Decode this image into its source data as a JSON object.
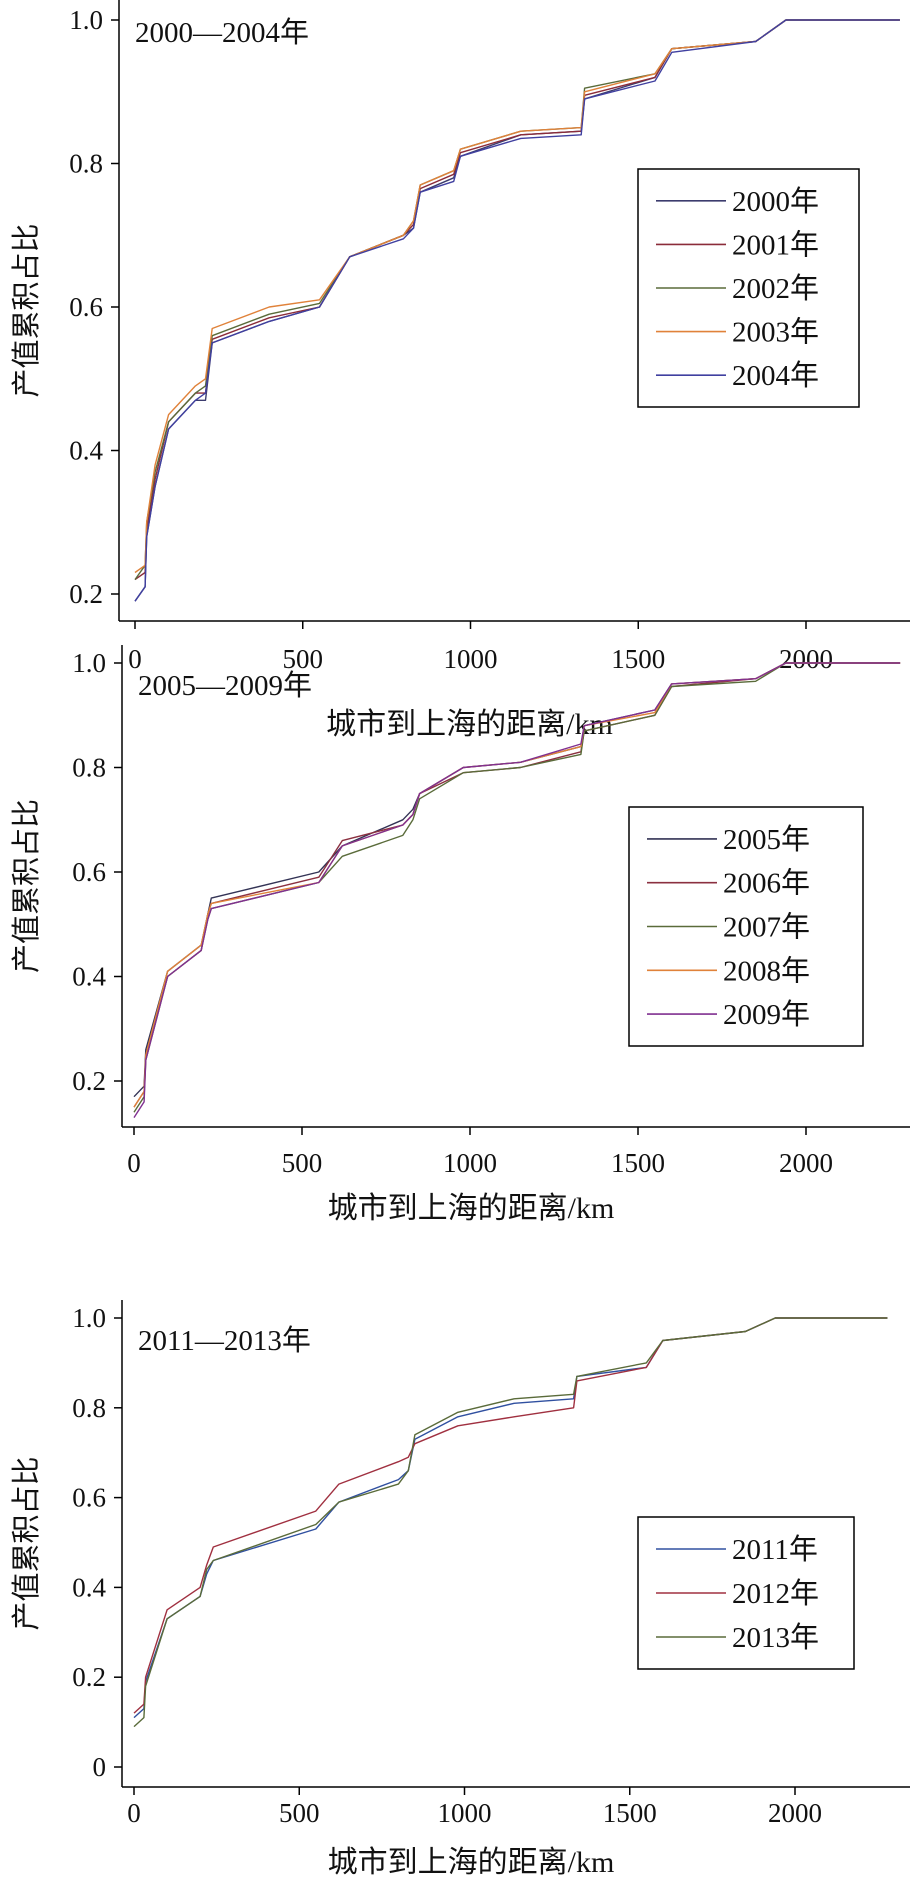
{
  "chart_data": [
    {
      "type": "line",
      "title": "2000—2004年",
      "xlabel": "城市到上海的距离/km",
      "ylabel": "产值累积占比",
      "xlim": [
        -20,
        2290
      ],
      "ylim": [
        0.17,
        1.02
      ],
      "xticks": [
        0,
        500,
        1000,
        1500,
        2000
      ],
      "xtick_labels": [
        "0",
        "500",
        "1000",
        "1500",
        "2000"
      ],
      "yticks": [
        0.2,
        0.4,
        0.6,
        0.8,
        1.0
      ],
      "ytick_labels": [
        "0.2",
        "0.4",
        "0.6",
        "0.8",
        "1.0"
      ],
      "legend_position": "right-middle",
      "x": [
        0,
        30,
        35,
        60,
        100,
        180,
        210,
        230,
        400,
        550,
        640,
        800,
        830,
        850,
        950,
        970,
        1150,
        1330,
        1340,
        1550,
        1600,
        1850,
        1940,
        2280
      ],
      "series": [
        {
          "name": "2000年",
          "color": "#3c3c6e",
          "values": [
            0.19,
            0.21,
            0.28,
            0.35,
            0.43,
            0.47,
            0.47,
            0.55,
            0.58,
            0.6,
            0.67,
            0.7,
            0.71,
            0.76,
            0.78,
            0.81,
            0.84,
            0.845,
            0.89,
            0.92,
            0.96,
            0.97,
            1.0,
            1.0
          ]
        },
        {
          "name": "2001年",
          "color": "#8b2c3a",
          "values": [
            0.22,
            0.23,
            0.29,
            0.36,
            0.44,
            0.48,
            0.48,
            0.555,
            0.585,
            0.6,
            0.67,
            0.7,
            0.715,
            0.765,
            0.785,
            0.815,
            0.84,
            0.845,
            0.895,
            0.92,
            0.96,
            0.97,
            1.0,
            1.0
          ]
        },
        {
          "name": "2002年",
          "color": "#5a6b3a",
          "values": [
            0.22,
            0.24,
            0.3,
            0.37,
            0.44,
            0.48,
            0.49,
            0.56,
            0.59,
            0.605,
            0.67,
            0.7,
            0.72,
            0.77,
            0.79,
            0.82,
            0.845,
            0.85,
            0.905,
            0.925,
            0.96,
            0.97,
            1.0,
            1.0
          ]
        },
        {
          "name": "2003年",
          "color": "#e0823a",
          "values": [
            0.23,
            0.24,
            0.3,
            0.38,
            0.45,
            0.49,
            0.5,
            0.57,
            0.6,
            0.61,
            0.67,
            0.7,
            0.72,
            0.77,
            0.79,
            0.82,
            0.845,
            0.85,
            0.9,
            0.925,
            0.96,
            0.97,
            1.0,
            1.0
          ]
        },
        {
          "name": "2004年",
          "color": "#4040a0",
          "values": [
            0.19,
            0.21,
            0.28,
            0.35,
            0.43,
            0.47,
            0.48,
            0.55,
            0.58,
            0.6,
            0.67,
            0.695,
            0.71,
            0.76,
            0.775,
            0.81,
            0.835,
            0.84,
            0.89,
            0.915,
            0.955,
            0.97,
            1.0,
            1.0
          ]
        }
      ]
    },
    {
      "type": "line",
      "title": "2005—2009年",
      "xlabel": "城市到上海的距离/km",
      "ylabel": "产值累积占比",
      "xlim": [
        -20,
        2290
      ],
      "ylim": [
        0.12,
        1.02
      ],
      "xticks": [
        0,
        500,
        1000,
        1500,
        2000
      ],
      "xtick_labels": [
        "0",
        "500",
        "1000",
        "1500",
        "2000"
      ],
      "yticks": [
        0.2,
        0.4,
        0.6,
        0.8,
        1.0
      ],
      "ytick_labels": [
        "0.2",
        "0.4",
        "0.6",
        "0.8",
        "1.0"
      ],
      "legend_position": "right-middle",
      "x": [
        0,
        30,
        35,
        100,
        200,
        220,
        230,
        550,
        620,
        800,
        830,
        850,
        980,
        1150,
        1330,
        1340,
        1550,
        1600,
        1850,
        1940,
        2280
      ],
      "series": [
        {
          "name": "2005年",
          "color": "#333355",
          "values": [
            0.17,
            0.19,
            0.26,
            0.41,
            0.46,
            0.52,
            0.55,
            0.6,
            0.65,
            0.7,
            0.72,
            0.75,
            0.8,
            0.81,
            0.84,
            0.88,
            0.91,
            0.96,
            0.97,
            1.0,
            1.0
          ]
        },
        {
          "name": "2006年",
          "color": "#8b3040",
          "values": [
            0.15,
            0.18,
            0.25,
            0.4,
            0.45,
            0.52,
            0.54,
            0.59,
            0.66,
            0.69,
            0.71,
            0.75,
            0.79,
            0.8,
            0.83,
            0.87,
            0.9,
            0.955,
            0.97,
            1.0,
            1.0
          ]
        },
        {
          "name": "2007年",
          "color": "#5a6b3a",
          "values": [
            0.14,
            0.17,
            0.24,
            0.4,
            0.45,
            0.51,
            0.53,
            0.58,
            0.63,
            0.67,
            0.7,
            0.74,
            0.79,
            0.8,
            0.825,
            0.87,
            0.9,
            0.955,
            0.965,
            1.0,
            1.0
          ]
        },
        {
          "name": "2008年",
          "color": "#e0823a",
          "values": [
            0.15,
            0.18,
            0.25,
            0.41,
            0.46,
            0.52,
            0.54,
            0.58,
            0.65,
            0.69,
            0.71,
            0.75,
            0.8,
            0.81,
            0.84,
            0.88,
            0.905,
            0.96,
            0.97,
            1.0,
            1.0
          ]
        },
        {
          "name": "2009年",
          "color": "#803090",
          "values": [
            0.13,
            0.16,
            0.24,
            0.4,
            0.45,
            0.51,
            0.53,
            0.58,
            0.65,
            0.69,
            0.71,
            0.75,
            0.8,
            0.81,
            0.845,
            0.88,
            0.91,
            0.96,
            0.97,
            1.0,
            1.0
          ]
        }
      ]
    },
    {
      "type": "line",
      "title": "2011—2013年",
      "xlabel": "城市到上海的距离/km",
      "ylabel": "产值累积占比",
      "xlim": [
        -20,
        2290
      ],
      "ylim": [
        -0.03,
        1.02
      ],
      "xticks": [
        0,
        500,
        1000,
        1500,
        2000
      ],
      "xtick_labels": [
        "0",
        "500",
        "1000",
        "1500",
        "2000"
      ],
      "yticks": [
        0,
        0.2,
        0.4,
        0.6,
        0.8,
        1.0
      ],
      "ytick_labels": [
        "0",
        "0.2",
        "0.4",
        "0.6",
        "0.8",
        "1.0"
      ],
      "legend_position": "right-lower",
      "x": [
        0,
        30,
        35,
        100,
        200,
        220,
        240,
        550,
        620,
        800,
        830,
        850,
        980,
        1150,
        1330,
        1340,
        1550,
        1600,
        1850,
        1940,
        2280
      ],
      "series": [
        {
          "name": "2011年",
          "color": "#3050a0",
          "values": [
            0.11,
            0.13,
            0.19,
            0.33,
            0.38,
            0.43,
            0.46,
            0.53,
            0.59,
            0.64,
            0.66,
            0.73,
            0.78,
            0.81,
            0.82,
            0.87,
            0.89,
            0.95,
            0.97,
            1.0,
            1.0
          ]
        },
        {
          "name": "2012年",
          "color": "#a03040",
          "values": [
            0.12,
            0.14,
            0.2,
            0.35,
            0.4,
            0.45,
            0.49,
            0.57,
            0.63,
            0.68,
            0.69,
            0.72,
            0.76,
            0.78,
            0.8,
            0.86,
            0.89,
            0.95,
            0.97,
            1.0,
            1.0
          ]
        },
        {
          "name": "2013年",
          "color": "#5a6b3a",
          "values": [
            0.09,
            0.11,
            0.18,
            0.33,
            0.38,
            0.44,
            0.46,
            0.54,
            0.59,
            0.63,
            0.66,
            0.74,
            0.79,
            0.82,
            0.83,
            0.87,
            0.9,
            0.95,
            0.97,
            1.0,
            1.0
          ]
        }
      ]
    }
  ]
}
